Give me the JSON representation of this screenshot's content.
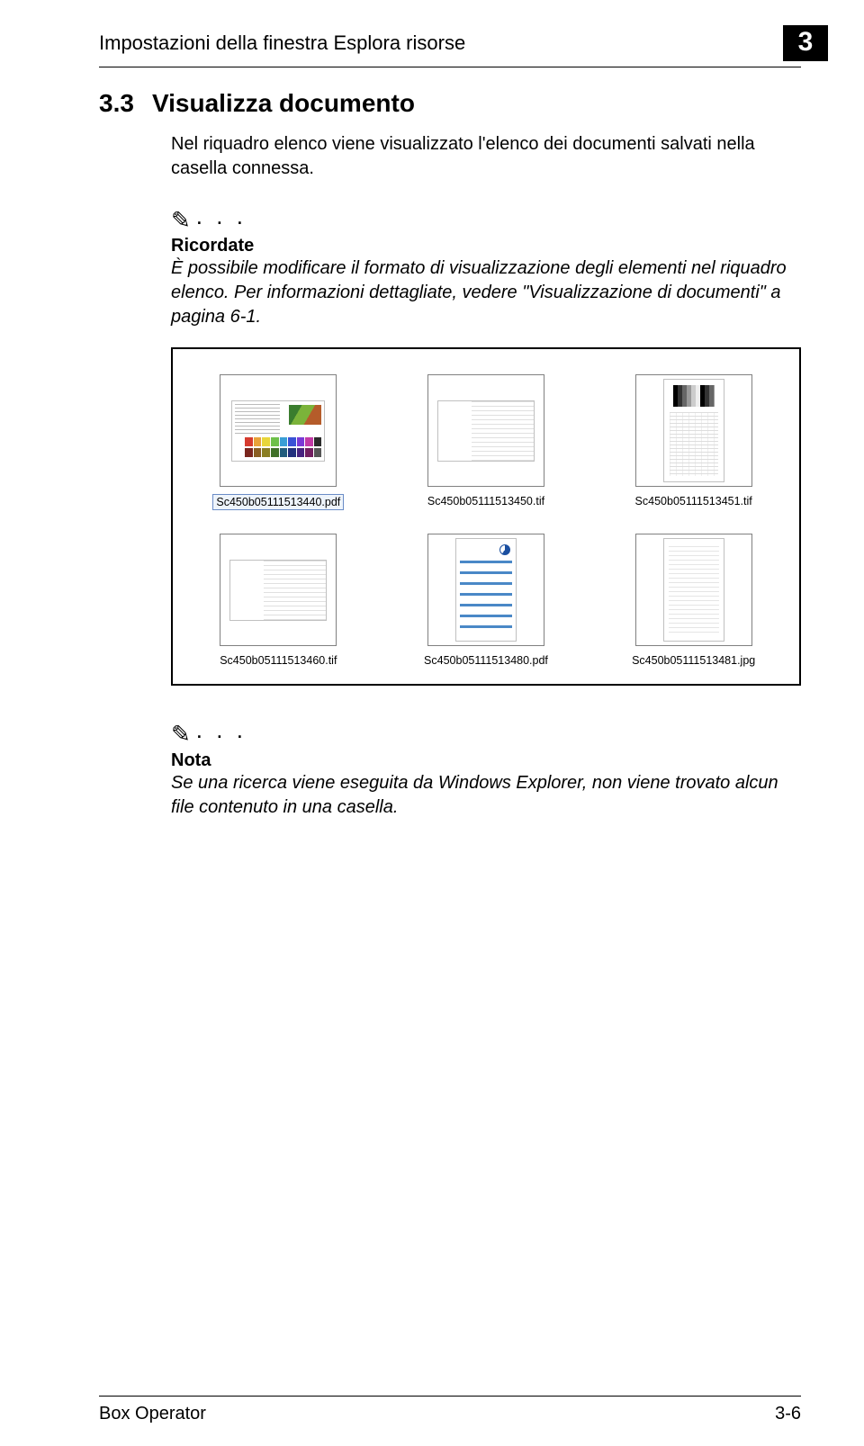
{
  "header": {
    "title": "Impostazioni della finestra Esplora risorse",
    "chapter_number": "3"
  },
  "section": {
    "number": "3.3",
    "title": "Visualizza documento",
    "intro": "Nel riquadro elenco viene visualizzato l'elenco dei documenti salvati nella casella connessa."
  },
  "reminder": {
    "icon": "✎",
    "dots": ". . .",
    "label": "Ricordate",
    "body": "È possibile modificare il formato di visualizzazione degli elementi nel riquadro elenco. Per informazioni dettagliate, vedere \"Visualizzazione di documenti\" a pagina 6-1."
  },
  "screenshot": {
    "files": [
      {
        "name": "Sc450b05111513440.pdf",
        "selected": true,
        "variant": "color-swatch"
      },
      {
        "name": "Sc450b05111513450.tif",
        "selected": false,
        "variant": "text-landscape"
      },
      {
        "name": "Sc450b05111513451.tif",
        "selected": false,
        "variant": "grayscale-test"
      },
      {
        "name": "Sc450b05111513460.tif",
        "selected": false,
        "variant": "text-landscape"
      },
      {
        "name": "Sc450b05111513480.pdf",
        "selected": false,
        "variant": "blue-header"
      },
      {
        "name": "Sc450b05111513481.jpg",
        "selected": false,
        "variant": "faint-columns"
      }
    ],
    "swatch_colors": {
      "row1": [
        "#d63b2f",
        "#e8a23a",
        "#e8d63a",
        "#6ec04a",
        "#3a9ed6",
        "#3a52d6",
        "#7a3ad6",
        "#c23aa6",
        "#2a2a2a"
      ],
      "row2": [
        "#7a261e",
        "#8a5e22",
        "#8a7e22",
        "#3f7028",
        "#225d7e",
        "#22307e",
        "#472280",
        "#721e60",
        "#555"
      ]
    }
  },
  "note": {
    "icon": "✎",
    "dots": ". . .",
    "label": "Nota",
    "body": "Se una ricerca viene eseguita da Windows Explorer, non viene trovato alcun file contenuto in una casella."
  },
  "footer": {
    "product": "Box Operator",
    "page": "3-6"
  }
}
